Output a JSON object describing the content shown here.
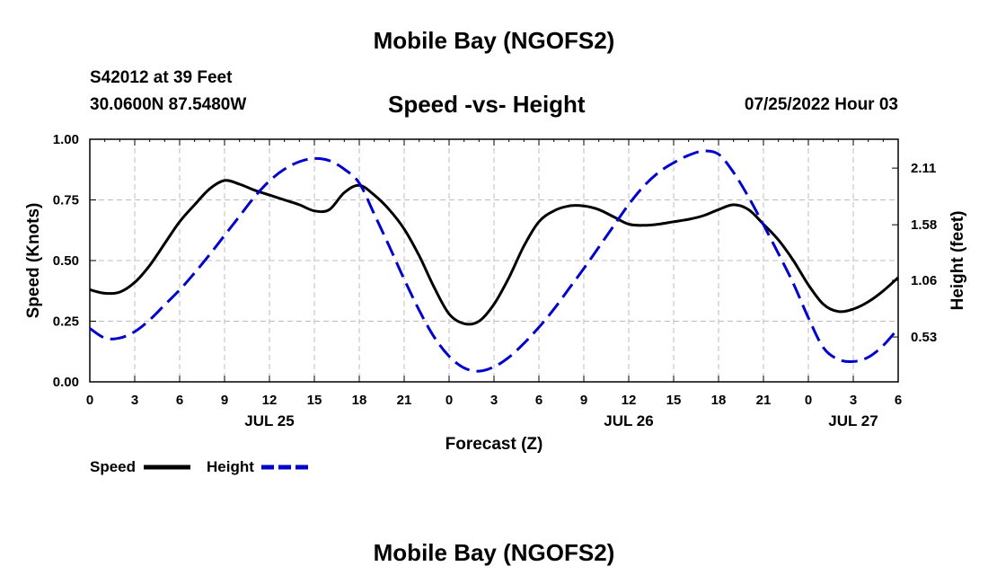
{
  "header": {
    "title": "Mobile Bay (NGOFS2)",
    "station": "S42012 at 39 Feet",
    "coords": "30.0600N  87.5480W",
    "subtitle": "Speed -vs- Height",
    "datetime": "07/25/2022 Hour 03",
    "footer_title": "Mobile Bay (NGOFS2)"
  },
  "chart_data": {
    "type": "line",
    "title": "Speed -vs- Height",
    "xlabel": "Forecast (Z)",
    "ylabel": "Speed (Knots)",
    "y2label": "Height (feet)",
    "xlim": [
      0,
      54
    ],
    "ylim": [
      0,
      1.0
    ],
    "y2lim": [
      0.11,
      2.38
    ],
    "x_ticks": [
      0,
      3,
      6,
      9,
      12,
      15,
      18,
      21,
      24,
      27,
      30,
      33,
      36,
      39,
      42,
      45,
      48,
      51,
      54
    ],
    "x_tick_labels": [
      "0",
      "3",
      "6",
      "9",
      "12",
      "15",
      "18",
      "21",
      "0",
      "3",
      "6",
      "9",
      "12",
      "15",
      "18",
      "21",
      "0",
      "3",
      "6"
    ],
    "y_ticks": [
      "0.00",
      "0.25",
      "0.50",
      "0.75",
      "1.00"
    ],
    "y2_ticks": [
      "0.53",
      "1.06",
      "1.58",
      "2.11"
    ],
    "date_labels": [
      {
        "x": 12,
        "label": "JUL 25"
      },
      {
        "x": 36,
        "label": "JUL 26"
      },
      {
        "x": 51,
        "label": "JUL 27"
      }
    ],
    "grid": true,
    "legend_position": "bottom-left",
    "series": [
      {
        "name": "Speed",
        "axis": "left",
        "color": "#000000",
        "dash": "solid",
        "x": [
          0,
          1,
          2,
          3,
          4,
          5,
          6,
          7,
          8,
          9,
          10,
          11,
          12,
          13,
          14,
          15,
          16,
          17,
          18,
          19,
          20,
          21,
          22,
          23,
          24,
          25,
          26,
          27,
          28,
          29,
          30,
          31,
          32,
          33,
          34,
          35,
          36,
          37,
          38,
          39,
          40,
          41,
          42,
          43,
          44,
          45,
          46,
          47,
          48,
          49,
          50,
          51,
          52,
          53,
          54
        ],
        "y": [
          0.38,
          0.365,
          0.37,
          0.41,
          0.48,
          0.57,
          0.66,
          0.73,
          0.795,
          0.83,
          0.815,
          0.79,
          0.77,
          0.75,
          0.73,
          0.705,
          0.71,
          0.78,
          0.81,
          0.77,
          0.71,
          0.63,
          0.52,
          0.39,
          0.28,
          0.24,
          0.25,
          0.32,
          0.43,
          0.56,
          0.66,
          0.705,
          0.725,
          0.725,
          0.71,
          0.68,
          0.65,
          0.645,
          0.65,
          0.66,
          0.67,
          0.685,
          0.71,
          0.73,
          0.71,
          0.65,
          0.585,
          0.5,
          0.4,
          0.32,
          0.29,
          0.3,
          0.33,
          0.375,
          0.43
        ]
      },
      {
        "name": "Height",
        "axis": "right",
        "color": "#0000cc",
        "dash": "dashed",
        "x": [
          0,
          1,
          2,
          3,
          4,
          5,
          6,
          7,
          8,
          9,
          10,
          11,
          12,
          13,
          14,
          15,
          16,
          17,
          18,
          19,
          20,
          21,
          22,
          23,
          24,
          25,
          26,
          27,
          28,
          29,
          30,
          31,
          32,
          33,
          34,
          35,
          36,
          37,
          38,
          39,
          40,
          41,
          42,
          43,
          44,
          45,
          46,
          47,
          48,
          49,
          50,
          51,
          52,
          53,
          54
        ],
        "y": [
          0.61,
          0.52,
          0.52,
          0.58,
          0.69,
          0.83,
          0.97,
          1.13,
          1.3,
          1.48,
          1.66,
          1.84,
          1.99,
          2.1,
          2.17,
          2.2,
          2.18,
          2.1,
          1.97,
          1.68,
          1.38,
          1.07,
          0.78,
          0.53,
          0.35,
          0.24,
          0.21,
          0.25,
          0.34,
          0.47,
          0.62,
          0.79,
          0.98,
          1.17,
          1.37,
          1.57,
          1.77,
          1.94,
          2.07,
          2.16,
          2.23,
          2.27,
          2.24,
          2.07,
          1.84,
          1.58,
          1.31,
          1.03,
          0.71,
          0.43,
          0.32,
          0.3,
          0.34,
          0.45,
          0.61
        ]
      }
    ]
  }
}
